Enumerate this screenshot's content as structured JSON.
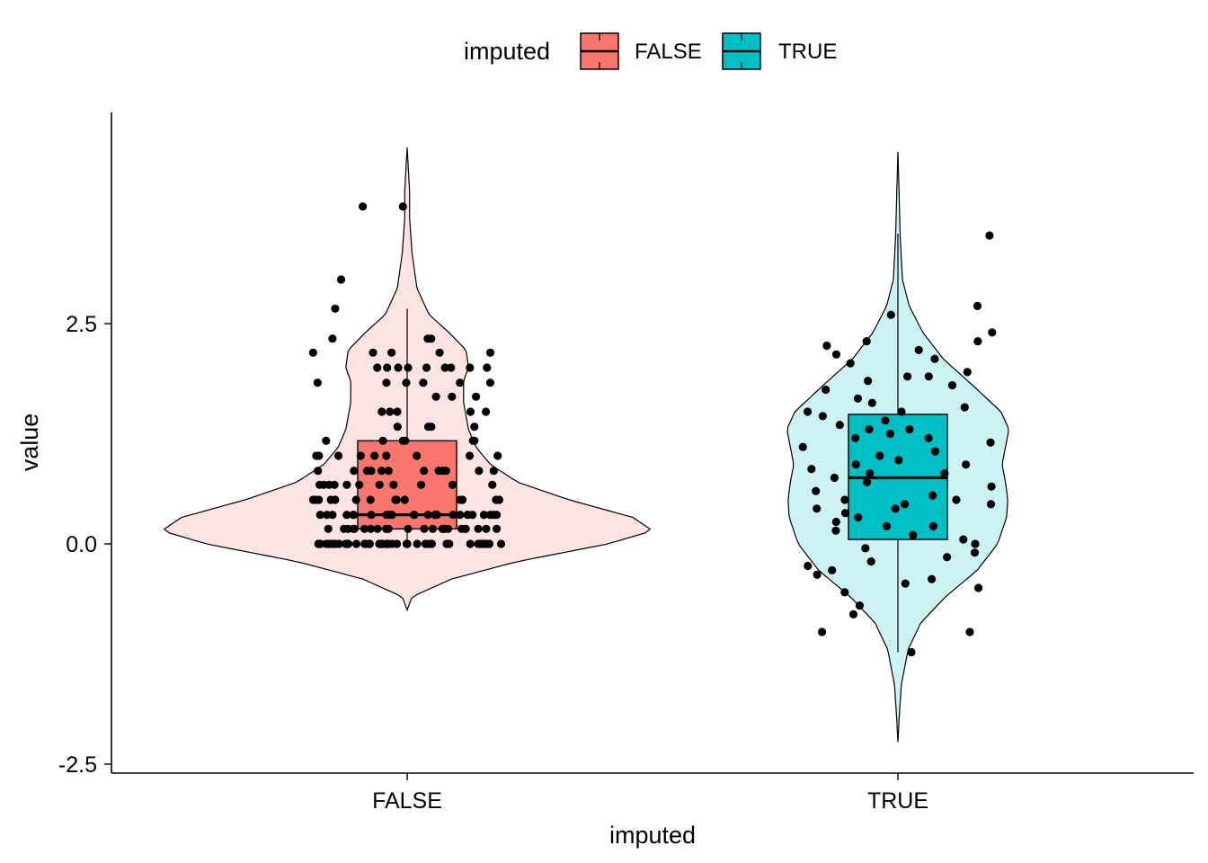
{
  "chart_data": {
    "type": "violin",
    "xlabel": "imputed",
    "ylabel": "value",
    "categories": [
      "FALSE",
      "TRUE"
    ],
    "ylim": [
      -2.6,
      4.8
    ],
    "y_ticks": [
      -2.5,
      0.0,
      2.5
    ],
    "y_tick_labels": [
      "-2.5",
      "0.0",
      "2.5"
    ],
    "grid": false,
    "legend": {
      "title": "imputed",
      "position": "top",
      "entries": [
        {
          "label": "FALSE",
          "color": "#F8766D"
        },
        {
          "label": "TRUE",
          "color": "#00BFC4"
        }
      ]
    },
    "series": [
      {
        "category": "FALSE",
        "fill": "#F8766D",
        "violin_fill": "#FDE3E1",
        "violin_range": [
          -0.75,
          4.5
        ],
        "density_profile": [
          [
            -0.75,
            0.0
          ],
          [
            -0.6,
            0.02
          ],
          [
            -0.4,
            0.18
          ],
          [
            -0.2,
            0.45
          ],
          [
            0.0,
            0.82
          ],
          [
            0.15,
            1.0
          ],
          [
            0.3,
            0.92
          ],
          [
            0.5,
            0.66
          ],
          [
            0.7,
            0.45
          ],
          [
            0.9,
            0.34
          ],
          [
            1.1,
            0.28
          ],
          [
            1.3,
            0.25
          ],
          [
            1.6,
            0.23
          ],
          [
            1.85,
            0.23
          ],
          [
            2.0,
            0.25
          ],
          [
            2.2,
            0.24
          ],
          [
            2.4,
            0.17
          ],
          [
            2.6,
            0.09
          ],
          [
            2.9,
            0.04
          ],
          [
            3.3,
            0.02
          ],
          [
            3.7,
            0.01
          ],
          [
            4.0,
            0.01
          ],
          [
            4.5,
            0.0
          ]
        ],
        "box": {
          "whisker_low": 0.0,
          "q1": 0.17,
          "median": 0.33,
          "q3": 1.17,
          "whisker_high": 2.67
        },
        "points": [
          [
            0.0,
            0.0
          ],
          [
            0.0,
            0.0
          ],
          [
            0.0,
            0.0
          ],
          [
            0.0,
            0.0
          ],
          [
            0.0,
            0.0
          ],
          [
            0.0,
            0.0
          ],
          [
            0.0,
            0.0
          ],
          [
            0.0,
            0.0
          ],
          [
            0.0,
            0.0
          ],
          [
            0.0,
            0.0
          ],
          [
            0.0,
            0.0
          ],
          [
            0.0,
            0.0
          ],
          [
            0.0,
            0.0
          ],
          [
            0.0,
            0.0
          ],
          [
            0.0,
            0.0
          ],
          [
            0.0,
            0.0
          ],
          [
            0.0,
            0.0
          ],
          [
            0.0,
            0.0
          ],
          [
            0.0,
            0.0
          ],
          [
            0.0,
            0.0
          ],
          [
            0.0,
            0.0
          ],
          [
            0.0,
            0.0
          ],
          [
            0.0,
            0.0
          ],
          [
            0.0,
            0.0
          ],
          [
            0.0,
            0.0
          ],
          [
            0.0,
            0.0
          ],
          [
            0.0,
            0.0
          ],
          [
            0.0,
            0.0
          ],
          [
            0.0,
            0.0
          ],
          [
            0.0,
            0.0
          ],
          [
            0.0,
            0.0
          ],
          [
            0.0,
            0.0
          ],
          [
            0.0,
            0.0
          ],
          [
            0.0,
            0.0
          ],
          [
            0.0,
            0.0
          ],
          [
            0.0,
            0.0
          ],
          [
            0.0,
            0.0
          ],
          [
            0.0,
            0.0
          ],
          [
            0.0,
            0.0
          ],
          [
            0.0,
            0.0
          ],
          [
            0.0,
            0.0
          ],
          [
            0.0,
            0.0
          ],
          [
            0.0,
            0.17
          ],
          [
            0.0,
            0.17
          ],
          [
            0.0,
            0.17
          ],
          [
            0.0,
            0.17
          ],
          [
            0.0,
            0.17
          ],
          [
            0.0,
            0.17
          ],
          [
            0.0,
            0.17
          ],
          [
            0.0,
            0.17
          ],
          [
            0.0,
            0.17
          ],
          [
            0.0,
            0.17
          ],
          [
            0.0,
            0.17
          ],
          [
            0.0,
            0.17
          ],
          [
            0.0,
            0.17
          ],
          [
            0.0,
            0.17
          ],
          [
            0.0,
            0.17
          ],
          [
            0.0,
            0.17
          ],
          [
            0.0,
            0.17
          ],
          [
            0.0,
            0.17
          ],
          [
            0.0,
            0.17
          ],
          [
            0.0,
            0.17
          ],
          [
            0.0,
            0.17
          ],
          [
            0.0,
            0.17
          ],
          [
            0.0,
            0.17
          ],
          [
            0.0,
            0.17
          ],
          [
            0.0,
            0.33
          ],
          [
            0.0,
            0.33
          ],
          [
            0.0,
            0.33
          ],
          [
            0.0,
            0.33
          ],
          [
            0.0,
            0.33
          ],
          [
            0.0,
            0.33
          ],
          [
            0.0,
            0.33
          ],
          [
            0.0,
            0.33
          ],
          [
            0.0,
            0.33
          ],
          [
            0.0,
            0.33
          ],
          [
            0.0,
            0.33
          ],
          [
            0.0,
            0.33
          ],
          [
            0.0,
            0.33
          ],
          [
            0.0,
            0.33
          ],
          [
            0.0,
            0.33
          ],
          [
            0.0,
            0.33
          ],
          [
            0.0,
            0.33
          ],
          [
            0.0,
            0.33
          ],
          [
            0.0,
            0.33
          ],
          [
            0.0,
            0.33
          ],
          [
            0.0,
            0.33
          ],
          [
            0.0,
            0.33
          ],
          [
            0.0,
            0.33
          ],
          [
            0.0,
            0.33
          ],
          [
            0.0,
            0.5
          ],
          [
            0.0,
            0.5
          ],
          [
            0.0,
            0.5
          ],
          [
            0.0,
            0.5
          ],
          [
            0.0,
            0.5
          ],
          [
            0.0,
            0.5
          ],
          [
            0.0,
            0.5
          ],
          [
            0.0,
            0.5
          ],
          [
            0.0,
            0.5
          ],
          [
            0.0,
            0.5
          ],
          [
            0.0,
            0.5
          ],
          [
            0.0,
            0.5
          ],
          [
            0.0,
            0.5
          ],
          [
            0.0,
            0.5
          ],
          [
            0.0,
            0.67
          ],
          [
            0.0,
            0.67
          ],
          [
            0.0,
            0.67
          ],
          [
            0.0,
            0.67
          ],
          [
            0.0,
            0.67
          ],
          [
            0.0,
            0.67
          ],
          [
            0.0,
            0.67
          ],
          [
            0.0,
            0.67
          ],
          [
            0.0,
            0.67
          ],
          [
            0.0,
            0.67
          ],
          [
            0.0,
            0.67
          ],
          [
            0.0,
            0.83
          ],
          [
            0.0,
            0.83
          ],
          [
            0.0,
            0.83
          ],
          [
            0.0,
            0.83
          ],
          [
            0.0,
            0.83
          ],
          [
            0.0,
            0.83
          ],
          [
            0.0,
            0.83
          ],
          [
            0.0,
            0.83
          ],
          [
            0.0,
            0.83
          ],
          [
            0.0,
            0.83
          ],
          [
            0.0,
            0.83
          ],
          [
            0.0,
            0.83
          ],
          [
            0.0,
            1.0
          ],
          [
            0.0,
            1.0
          ],
          [
            0.0,
            1.0
          ],
          [
            0.0,
            1.0
          ],
          [
            0.0,
            1.0
          ],
          [
            0.0,
            1.0
          ],
          [
            0.0,
            1.0
          ],
          [
            0.0,
            1.0
          ],
          [
            0.0,
            1.0
          ],
          [
            0.0,
            1.17
          ],
          [
            0.0,
            1.17
          ],
          [
            0.0,
            1.17
          ],
          [
            0.0,
            1.17
          ],
          [
            0.0,
            1.17
          ],
          [
            0.0,
            1.17
          ],
          [
            0.0,
            1.33
          ],
          [
            0.0,
            1.33
          ],
          [
            0.0,
            1.33
          ],
          [
            0.0,
            1.33
          ],
          [
            0.0,
            1.5
          ],
          [
            0.0,
            1.5
          ],
          [
            0.0,
            1.5
          ],
          [
            0.0,
            1.5
          ],
          [
            0.0,
            1.5
          ],
          [
            0.0,
            1.67
          ],
          [
            0.0,
            1.67
          ],
          [
            0.0,
            1.67
          ],
          [
            0.0,
            1.83
          ],
          [
            0.0,
            1.83
          ],
          [
            0.0,
            1.83
          ],
          [
            0.0,
            1.83
          ],
          [
            0.0,
            1.83
          ],
          [
            0.0,
            1.83
          ],
          [
            0.0,
            2.0
          ],
          [
            0.0,
            2.0
          ],
          [
            0.0,
            2.0
          ],
          [
            0.0,
            2.0
          ],
          [
            0.0,
            2.0
          ],
          [
            0.0,
            2.0
          ],
          [
            0.0,
            2.0
          ],
          [
            0.0,
            2.0
          ],
          [
            0.0,
            2.0
          ],
          [
            0.0,
            2.17
          ],
          [
            0.0,
            2.17
          ],
          [
            0.0,
            2.17
          ],
          [
            0.0,
            2.17
          ],
          [
            0.0,
            2.17
          ],
          [
            0.0,
            2.33
          ],
          [
            0.0,
            2.33
          ],
          [
            0.0,
            2.33
          ],
          [
            0.0,
            2.67
          ],
          [
            0.0,
            3.0
          ],
          [
            0.0,
            3.83
          ],
          [
            0.0,
            3.83
          ]
        ]
      },
      {
        "category": "TRUE",
        "fill": "#00BFC4",
        "violin_fill": "#CCF2F3",
        "violin_range": [
          -2.25,
          4.45
        ],
        "density_profile": [
          [
            -2.25,
            0.0
          ],
          [
            -2.0,
            0.01
          ],
          [
            -1.6,
            0.03
          ],
          [
            -1.2,
            0.09
          ],
          [
            -0.9,
            0.2
          ],
          [
            -0.6,
            0.42
          ],
          [
            -0.3,
            0.7
          ],
          [
            0.0,
            0.88
          ],
          [
            0.3,
            0.96
          ],
          [
            0.5,
            0.97
          ],
          [
            0.7,
            0.95
          ],
          [
            0.9,
            0.92
          ],
          [
            1.1,
            0.95
          ],
          [
            1.3,
            0.98
          ],
          [
            1.5,
            0.91
          ],
          [
            1.8,
            0.66
          ],
          [
            2.1,
            0.4
          ],
          [
            2.4,
            0.22
          ],
          [
            2.7,
            0.1
          ],
          [
            3.0,
            0.04
          ],
          [
            3.5,
            0.02
          ],
          [
            4.0,
            0.01
          ],
          [
            4.45,
            0.0
          ]
        ],
        "box": {
          "whisker_low": -1.23,
          "q1": 0.05,
          "median": 0.75,
          "q3": 1.47,
          "whisker_high": 3.52
        },
        "points": [
          [
            0.0,
            3.5
          ],
          [
            0.0,
            2.7
          ],
          [
            0.0,
            2.6
          ],
          [
            0.0,
            2.4
          ],
          [
            0.0,
            2.3
          ],
          [
            0.0,
            2.25
          ],
          [
            0.0,
            2.2
          ],
          [
            0.0,
            2.15
          ],
          [
            0.0,
            2.1
          ],
          [
            0.0,
            2.05
          ],
          [
            0.0,
            1.95
          ],
          [
            0.0,
            1.9
          ],
          [
            0.0,
            1.85
          ],
          [
            0.0,
            1.8
          ],
          [
            0.0,
            1.75
          ],
          [
            0.0,
            1.65
          ],
          [
            0.0,
            1.6
          ],
          [
            0.0,
            1.55
          ],
          [
            0.0,
            1.5
          ],
          [
            0.0,
            1.5
          ],
          [
            0.0,
            1.45
          ],
          [
            0.0,
            1.4
          ],
          [
            0.0,
            1.35
          ],
          [
            0.0,
            1.3
          ],
          [
            0.0,
            1.25
          ],
          [
            0.0,
            1.2
          ],
          [
            0.0,
            1.15
          ],
          [
            0.0,
            1.1
          ],
          [
            0.0,
            1.05
          ],
          [
            0.0,
            1.0
          ],
          [
            0.0,
            0.95
          ],
          [
            0.0,
            0.9
          ],
          [
            0.0,
            0.85
          ],
          [
            0.0,
            0.8
          ],
          [
            0.0,
            0.75
          ],
          [
            0.0,
            0.7
          ],
          [
            0.0,
            0.65
          ],
          [
            0.0,
            0.6
          ],
          [
            0.0,
            0.55
          ],
          [
            0.0,
            0.5
          ],
          [
            0.0,
            0.45
          ],
          [
            0.0,
            0.4
          ],
          [
            0.0,
            0.35
          ],
          [
            0.0,
            0.3
          ],
          [
            0.0,
            0.25
          ],
          [
            0.0,
            0.2
          ],
          [
            0.0,
            0.2
          ],
          [
            0.0,
            0.15
          ],
          [
            0.0,
            0.1
          ],
          [
            0.0,
            0.05
          ],
          [
            0.0,
            0.0
          ],
          [
            0.0,
            -0.05
          ],
          [
            0.0,
            -0.1
          ],
          [
            0.0,
            -0.15
          ],
          [
            0.0,
            -0.2
          ],
          [
            0.0,
            -0.25
          ],
          [
            0.0,
            -0.3
          ],
          [
            0.0,
            -0.35
          ],
          [
            0.0,
            -0.4
          ],
          [
            0.0,
            -0.45
          ],
          [
            0.0,
            -0.5
          ],
          [
            0.0,
            -0.55
          ],
          [
            0.0,
            -0.7
          ],
          [
            0.0,
            -0.8
          ],
          [
            0.0,
            -1.0
          ],
          [
            0.0,
            -1.0
          ],
          [
            0.0,
            -1.23
          ],
          [
            0.0,
            0.8
          ],
          [
            0.0,
            1.2
          ],
          [
            0.0,
            0.5
          ],
          [
            0.0,
            0.45
          ],
          [
            0.0,
            0.4
          ],
          [
            0.0,
            1.9
          ],
          [
            0.0,
            2.3
          ],
          [
            0.0,
            1.3
          ],
          [
            0.0,
            0.9
          ]
        ]
      }
    ]
  }
}
